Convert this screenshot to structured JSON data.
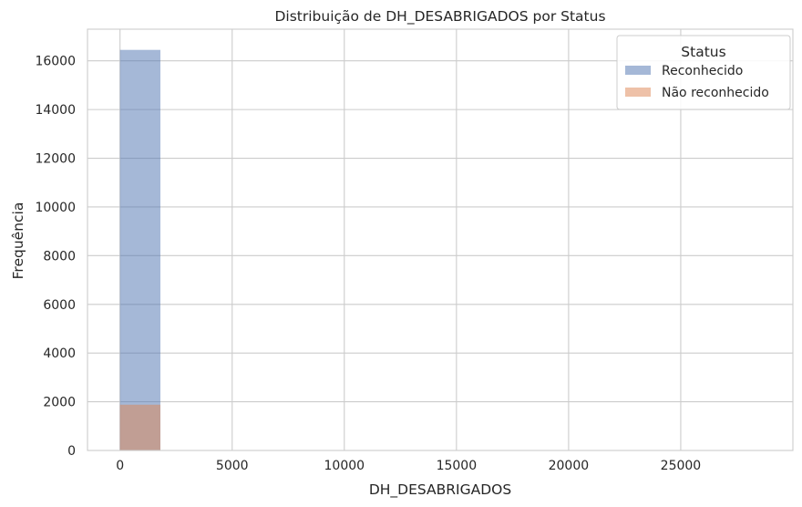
{
  "chart_data": {
    "type": "bar",
    "title": "Distribuição de DH_DESABRIGADOS por Status",
    "xlabel": "DH_DESABRIGADOS",
    "ylabel": "Frequência",
    "xlim": [
      -1450,
      30000
    ],
    "ylim": [
      0,
      17300
    ],
    "xticks": [
      0,
      5000,
      10000,
      15000,
      20000,
      25000
    ],
    "yticks": [
      0,
      2000,
      4000,
      6000,
      8000,
      10000,
      12000,
      14000,
      16000
    ],
    "grid": true,
    "legend": {
      "title": "Status",
      "placement": "top-right"
    },
    "series": [
      {
        "name": "Reconhecido",
        "color": "#4c72b0",
        "bins": [
          {
            "x0": 0,
            "x1": 1800,
            "count": 16450
          },
          {
            "x0": 1800,
            "x1": 3600,
            "count": 10
          },
          {
            "x0": 3600,
            "x1": 5400,
            "count": 3
          }
        ]
      },
      {
        "name": "Não reconhecido",
        "color": "#dd8452",
        "bins": [
          {
            "x0": 0,
            "x1": 1800,
            "count": 1880
          }
        ]
      }
    ]
  }
}
